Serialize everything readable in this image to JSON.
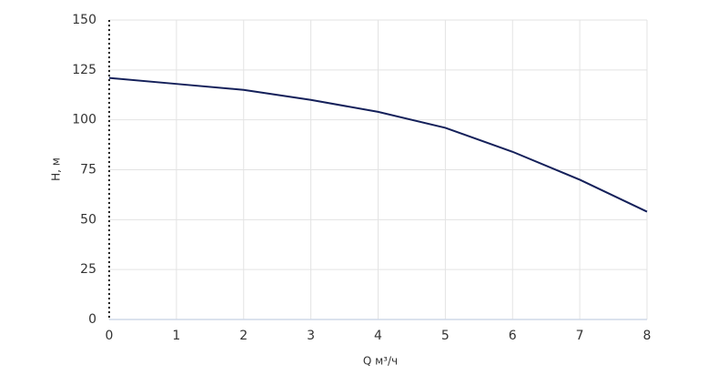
{
  "chart_data": {
    "type": "line",
    "x_label": "Q м³/ч",
    "y_label": "H, м",
    "x": [
      0,
      1,
      2,
      3,
      4,
      5,
      6,
      7,
      8
    ],
    "series": [
      {
        "color": "#14205a",
        "values": [
          121,
          118,
          115,
          110,
          104,
          96,
          84,
          70,
          54
        ]
      }
    ],
    "xlim": [
      0,
      8
    ],
    "xticks": [
      0,
      1,
      2,
      3,
      4,
      5,
      6,
      7,
      8
    ],
    "ylim": [
      0,
      150
    ],
    "yticks": [
      0,
      25,
      50,
      75,
      100,
      125,
      150
    ],
    "grid": true
  }
}
